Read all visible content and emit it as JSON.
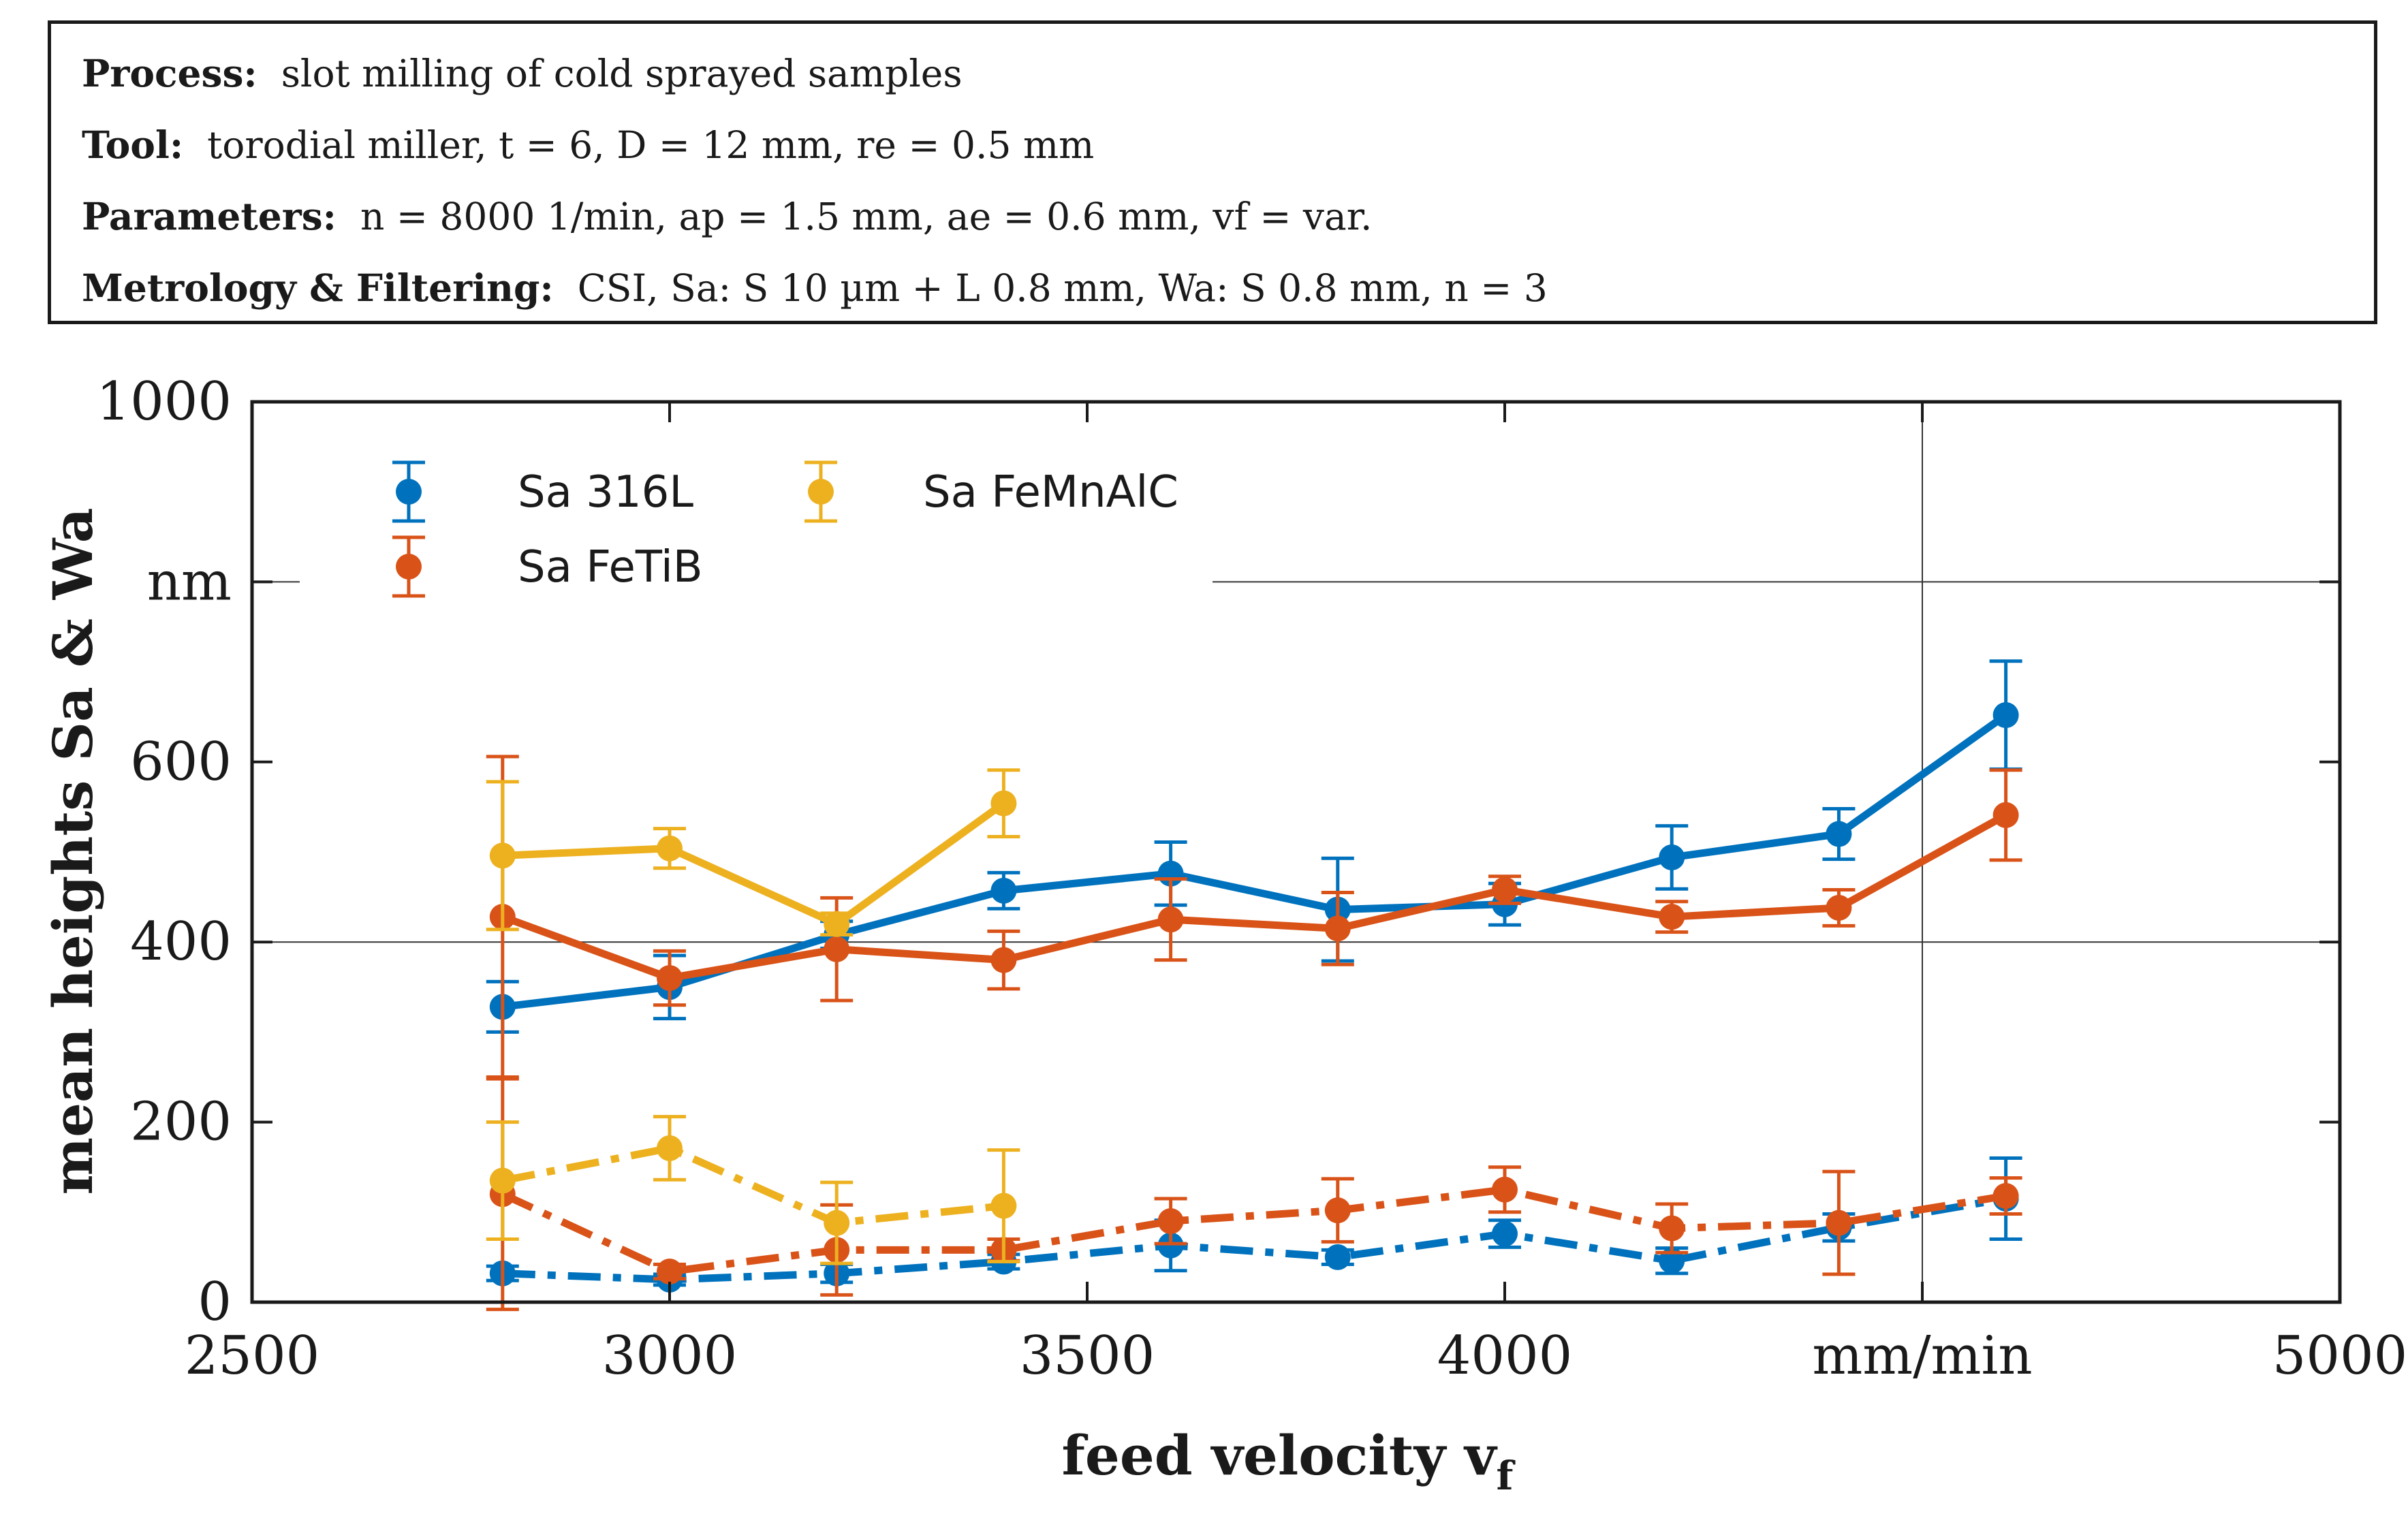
{
  "info": {
    "process_label": "Process:",
    "process_value": "slot milling of cold sprayed samples",
    "tool_label": "Tool:",
    "tool_value": "torodial miller, t = 6, D = 12 mm, re = 0.5 mm",
    "parameters_label": "Parameters:",
    "parameters_value": "n = 8000 1/min, ap = 1.5 mm, ae = 0.6 mm, vf = var.",
    "metrology_label": "Metrology & Filtering:",
    "metrology_value": "CSI, Sa: S 10 µm + L 0.8 mm, Wa: S 0.8 mm,  n = 3"
  },
  "chart_data": {
    "type": "line",
    "xlabel": "feed velocity v",
    "xlabel_sub": "f",
    "ylabel": "mean heights Sa & Wa",
    "xlim": [
      2500,
      5000
    ],
    "ylim": [
      0,
      1000
    ],
    "x_ticks": [
      {
        "value": 2500,
        "label": "2500"
      },
      {
        "value": 3000,
        "label": "3000"
      },
      {
        "value": 3500,
        "label": "3500"
      },
      {
        "value": 4000,
        "label": "4000"
      },
      {
        "value": 4500,
        "label": "mm/min"
      },
      {
        "value": 5000,
        "label": "5000"
      }
    ],
    "y_ticks": [
      {
        "value": 0,
        "label": "0"
      },
      {
        "value": 200,
        "label": "200"
      },
      {
        "value": 400,
        "label": "400"
      },
      {
        "value": 600,
        "label": "600"
      },
      {
        "value": 800,
        "label": "nm"
      },
      {
        "value": 1000,
        "label": "1000"
      }
    ],
    "grid_lines": {
      "x": [
        4500
      ],
      "y": [
        400,
        800
      ]
    },
    "colors": {
      "316L": "#0072BD",
      "FeTiB": "#D95319",
      "FeMnAlC": "#EDB120"
    },
    "legend": [
      {
        "label": "Sa 316L",
        "color": "#0072BD"
      },
      {
        "label": "Sa FeTiB",
        "color": "#D95319"
      },
      {
        "label": "Sa FeMnAlC",
        "color": "#EDB120"
      }
    ],
    "series": [
      {
        "name": "Sa 316L",
        "color": "#0072BD",
        "style": "solid",
        "x": [
          2800,
          3000,
          3200,
          3400,
          3600,
          3800,
          4000,
          4200,
          4400,
          4600
        ],
        "values": [
          328,
          350,
          408,
          457,
          476,
          436,
          442,
          494,
          520,
          652
        ],
        "errors": [
          28,
          35,
          15,
          20,
          35,
          57,
          23,
          35,
          28,
          60
        ]
      },
      {
        "name": "Sa FeTiB",
        "color": "#D95319",
        "style": "solid",
        "x": [
          2800,
          3000,
          3200,
          3400,
          3600,
          3800,
          4000,
          4200,
          4400,
          4600
        ],
        "values": [
          428,
          360,
          392,
          380,
          425,
          415,
          458,
          428,
          438,
          541
        ],
        "errors": [
          178,
          30,
          57,
          32,
          45,
          40,
          15,
          17,
          20,
          50
        ]
      },
      {
        "name": "Sa FeMnAlC",
        "color": "#EDB120",
        "style": "solid",
        "x": [
          2800,
          3000,
          3200,
          3400
        ],
        "values": [
          496,
          504,
          420,
          554
        ],
        "errors": [
          82,
          22,
          12,
          37
        ]
      },
      {
        "name": "Wa 316L",
        "color": "#0072BD",
        "style": "dashdot",
        "x": [
          2800,
          3000,
          3200,
          3400,
          3600,
          3800,
          4000,
          4200,
          4400,
          4600
        ],
        "values": [
          32,
          25,
          32,
          45,
          63,
          50,
          76,
          46,
          83,
          115
        ],
        "errors": [
          8,
          6,
          10,
          8,
          28,
          8,
          15,
          14,
          15,
          45
        ]
      },
      {
        "name": "Wa FeTiB",
        "color": "#D95319",
        "style": "dashdot",
        "x": [
          2800,
          3000,
          3200,
          3400,
          3600,
          3800,
          4000,
          4200,
          4400,
          4600
        ],
        "values": [
          120,
          34,
          58,
          58,
          90,
          102,
          125,
          82,
          88,
          118
        ],
        "errors": [
          128,
          8,
          50,
          12,
          25,
          35,
          25,
          27,
          57,
          20
        ]
      },
      {
        "name": "Wa FeMnAlC",
        "color": "#EDB120",
        "style": "dashdot",
        "x": [
          2800,
          3000,
          3200,
          3400
        ],
        "values": [
          135,
          171,
          88,
          107
        ],
        "errors": [
          65,
          35,
          45,
          62
        ]
      }
    ]
  }
}
